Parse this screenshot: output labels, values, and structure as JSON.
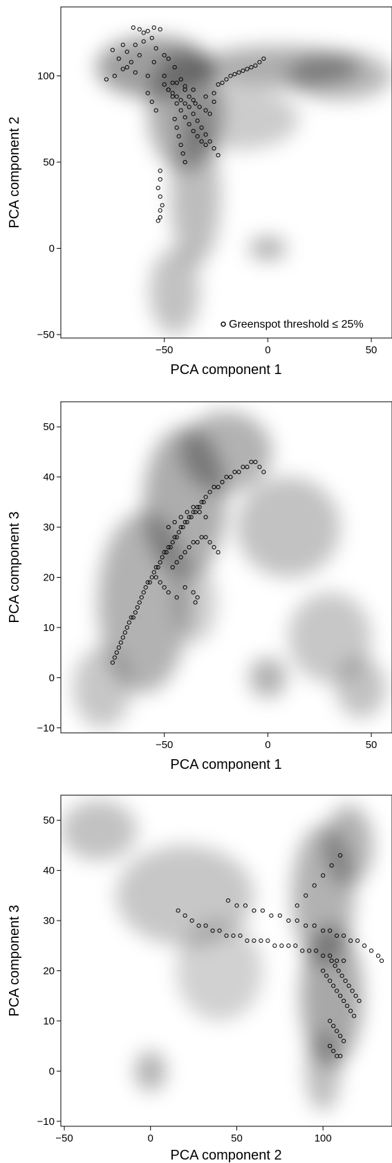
{
  "chart_data": [
    {
      "type": "scatter",
      "xlabel": "PCA component 1",
      "ylabel": "PCA component 2",
      "xlim": [
        -100,
        60
      ],
      "ylim": [
        -52,
        140
      ],
      "xticks": [
        -50,
        0,
        50
      ],
      "yticks": [
        -50,
        0,
        50,
        100
      ],
      "xtick_labels": [
        "−50",
        "0",
        "50"
      ],
      "ytick_labels": [
        "−50",
        "0",
        "50",
        "100"
      ],
      "grid": false,
      "legend": {
        "placement": "bottom-right",
        "entries": [
          "Greenspot threshold ≤ 25%"
        ]
      },
      "density_regions": [
        {
          "cx": -55,
          "cy": 105,
          "rx": 28,
          "ry": 18,
          "opacity": 0.38
        },
        {
          "cx": -40,
          "cy": 80,
          "rx": 18,
          "ry": 35,
          "opacity": 0.32
        },
        {
          "cx": -35,
          "cy": 30,
          "rx": 12,
          "ry": 40,
          "opacity": 0.26
        },
        {
          "cx": -45,
          "cy": -25,
          "rx": 12,
          "ry": 25,
          "opacity": 0.24
        },
        {
          "cx": 5,
          "cy": 105,
          "rx": 40,
          "ry": 12,
          "opacity": 0.32
        },
        {
          "cx": 35,
          "cy": 100,
          "rx": 25,
          "ry": 14,
          "opacity": 0.28
        },
        {
          "cx": -15,
          "cy": 75,
          "rx": 30,
          "ry": 18,
          "opacity": 0.2
        },
        {
          "cx": 0,
          "cy": 0,
          "rx": 9,
          "ry": 7,
          "opacity": 0.3
        }
      ],
      "series": [
        {
          "name": "Greenspot threshold ≤ 25%",
          "x": [
            -65,
            -62,
            -58,
            -55,
            -52,
            -60,
            -70,
            -75,
            -72,
            -68,
            -64,
            -58,
            -55,
            -50,
            -48,
            -45,
            -42,
            -40,
            -38,
            -36,
            -35,
            -33,
            -30,
            -28,
            -26,
            -24,
            -22,
            -20,
            -18,
            -16,
            -14,
            -12,
            -10,
            -8,
            -6,
            -4,
            -2,
            -48,
            -46,
            -44,
            -42,
            -40,
            -38,
            -36,
            -34,
            -32,
            -30,
            -45,
            -44,
            -43,
            -42,
            -41,
            -40,
            -52,
            -52,
            -53,
            -52,
            -51,
            -52,
            -52,
            -53,
            -50,
            -48,
            -46,
            -44,
            -42,
            -40,
            -38,
            -36,
            -34,
            -32,
            -30,
            -28,
            -26,
            -24,
            -62,
            -66,
            -70,
            -74,
            -78,
            -68,
            -64,
            -60,
            -56,
            -54,
            -50,
            -46,
            -58,
            -56,
            -54,
            -44,
            -40,
            -36,
            -30,
            -26
          ],
          "y": [
            128,
            127,
            126,
            128,
            127,
            125,
            118,
            115,
            110,
            105,
            102,
            100,
            108,
            112,
            110,
            105,
            98,
            92,
            88,
            86,
            84,
            82,
            80,
            78,
            90,
            95,
            96,
            98,
            100,
            101,
            102,
            103,
            104,
            105,
            106,
            108,
            110,
            92,
            88,
            84,
            80,
            76,
            72,
            68,
            65,
            62,
            60,
            75,
            70,
            65,
            60,
            55,
            50,
            45,
            40,
            35,
            30,
            25,
            22,
            18,
            16,
            95,
            92,
            90,
            88,
            86,
            84,
            82,
            78,
            74,
            70,
            66,
            62,
            58,
            54,
            112,
            108,
            104,
            100,
            98,
            114,
            118,
            120,
            122,
            116,
            100,
            96,
            90,
            85,
            80,
            96,
            94,
            92,
            88,
            85
          ]
        }
      ]
    },
    {
      "type": "scatter",
      "xlabel": "PCA component 1",
      "ylabel": "PCA component 3",
      "xlim": [
        -100,
        60
      ],
      "ylim": [
        -11,
        55
      ],
      "xticks": [
        -50,
        0,
        50
      ],
      "yticks": [
        -10,
        0,
        10,
        20,
        30,
        40,
        50
      ],
      "xtick_labels": [
        "−50",
        "0",
        "50"
      ],
      "ytick_labels": [
        "−10",
        "0",
        "10",
        "20",
        "30",
        "40",
        "50"
      ],
      "grid": false,
      "density_regions": [
        {
          "cx": -60,
          "cy": 15,
          "rx": 22,
          "ry": 18,
          "opacity": 0.3
        },
        {
          "cx": -80,
          "cy": -2,
          "rx": 14,
          "ry": 8,
          "opacity": 0.22
        },
        {
          "cx": -40,
          "cy": 35,
          "rx": 20,
          "ry": 15,
          "opacity": 0.32
        },
        {
          "cx": -20,
          "cy": 45,
          "rx": 22,
          "ry": 8,
          "opacity": 0.3
        },
        {
          "cx": 10,
          "cy": 30,
          "rx": 25,
          "ry": 10,
          "opacity": 0.24
        },
        {
          "cx": 30,
          "cy": 8,
          "rx": 20,
          "ry": 9,
          "opacity": 0.22
        },
        {
          "cx": 45,
          "cy": -2,
          "rx": 12,
          "ry": 6,
          "opacity": 0.24
        },
        {
          "cx": -35,
          "cy": 15,
          "rx": 10,
          "ry": 8,
          "opacity": 0.2
        },
        {
          "cx": 0,
          "cy": 0,
          "rx": 9,
          "ry": 4,
          "opacity": 0.3
        }
      ],
      "series": [
        {
          "name": "",
          "x": [
            -75,
            -74,
            -73,
            -72,
            -71,
            -70,
            -69,
            -68,
            -67,
            -66,
            -65,
            -64,
            -63,
            -62,
            -61,
            -60,
            -59,
            -58,
            -57,
            -56,
            -55,
            -54,
            -53,
            -52,
            -51,
            -50,
            -49,
            -48,
            -47,
            -46,
            -45,
            -44,
            -43,
            -42,
            -41,
            -40,
            -39,
            -38,
            -37,
            -36,
            -35,
            -34,
            -33,
            -32,
            -31,
            -30,
            -28,
            -26,
            -24,
            -22,
            -20,
            -18,
            -16,
            -14,
            -12,
            -10,
            -8,
            -6,
            -4,
            -2,
            -46,
            -44,
            -42,
            -40,
            -38,
            -36,
            -34,
            -32,
            -30,
            -28,
            -26,
            -24,
            -48,
            -45,
            -42,
            -39,
            -36,
            -33,
            -30,
            -54,
            -52,
            -50,
            -48,
            -44,
            -40,
            -36,
            -35,
            -34
          ],
          "y": [
            3,
            4,
            5,
            6,
            7,
            8,
            9,
            10,
            11,
            12,
            12,
            13,
            14,
            15,
            16,
            17,
            18,
            19,
            19,
            20,
            21,
            22,
            22,
            23,
            24,
            25,
            25,
            26,
            26,
            27,
            28,
            28,
            29,
            30,
            30,
            31,
            31,
            32,
            32,
            33,
            33,
            34,
            34,
            35,
            35,
            36,
            37,
            38,
            38,
            39,
            40,
            40,
            41,
            41,
            42,
            42,
            43,
            43,
            42,
            41,
            22,
            23,
            24,
            25,
            26,
            27,
            27,
            28,
            28,
            27,
            26,
            25,
            30,
            31,
            32,
            33,
            34,
            33,
            32,
            20,
            19,
            18,
            17,
            16,
            18,
            17,
            15,
            16
          ]
        }
      ]
    },
    {
      "type": "scatter",
      "xlabel": "PCA component 2",
      "ylabel": "PCA component 3",
      "xlim": [
        -52,
        140
      ],
      "ylim": [
        -11,
        55
      ],
      "xticks": [
        -50,
        0,
        50,
        100
      ],
      "yticks": [
        -10,
        0,
        10,
        20,
        30,
        40,
        50
      ],
      "xtick_labels": [
        "−50",
        "0",
        "50",
        "100"
      ],
      "ytick_labels": [
        "−10",
        "0",
        "10",
        "20",
        "30",
        "40",
        "50"
      ],
      "grid": false,
      "density_regions": [
        {
          "cx": -30,
          "cy": 48,
          "rx": 22,
          "ry": 6,
          "opacity": 0.24
        },
        {
          "cx": 20,
          "cy": 35,
          "rx": 40,
          "ry": 10,
          "opacity": 0.22
        },
        {
          "cx": 40,
          "cy": 20,
          "rx": 25,
          "ry": 10,
          "opacity": 0.18
        },
        {
          "cx": 100,
          "cy": 35,
          "rx": 18,
          "ry": 14,
          "opacity": 0.3
        },
        {
          "cx": 115,
          "cy": 45,
          "rx": 14,
          "ry": 8,
          "opacity": 0.3
        },
        {
          "cx": 105,
          "cy": 15,
          "rx": 18,
          "ry": 14,
          "opacity": 0.34
        },
        {
          "cx": 100,
          "cy": 0,
          "rx": 10,
          "ry": 8,
          "opacity": 0.26
        },
        {
          "cx": 0,
          "cy": 0,
          "rx": 9,
          "ry": 4,
          "opacity": 0.3
        }
      ],
      "series": [
        {
          "name": "",
          "x": [
            16,
            20,
            24,
            28,
            32,
            36,
            40,
            44,
            48,
            52,
            56,
            60,
            64,
            68,
            72,
            76,
            80,
            84,
            88,
            92,
            96,
            100,
            104,
            108,
            112,
            45,
            50,
            55,
            60,
            65,
            70,
            75,
            80,
            85,
            90,
            95,
            100,
            104,
            108,
            112,
            116,
            120,
            124,
            128,
            132,
            134,
            100,
            102,
            104,
            106,
            108,
            110,
            112,
            114,
            116,
            118,
            104,
            106,
            108,
            110,
            112,
            104,
            106,
            108,
            110,
            105,
            107,
            109,
            111,
            113,
            115,
            117,
            119,
            121,
            85,
            90,
            95,
            100,
            105,
            110
          ],
          "y": [
            32,
            31,
            30,
            29,
            29,
            28,
            28,
            27,
            27,
            27,
            26,
            26,
            26,
            26,
            25,
            25,
            25,
            25,
            24,
            24,
            24,
            23,
            23,
            22,
            22,
            34,
            33,
            33,
            32,
            32,
            31,
            31,
            30,
            30,
            29,
            29,
            28,
            28,
            27,
            27,
            26,
            26,
            25,
            24,
            23,
            22,
            20,
            19,
            18,
            17,
            16,
            15,
            14,
            13,
            12,
            11,
            10,
            9,
            8,
            7,
            6,
            5,
            4,
            3,
            3,
            22,
            21,
            20,
            19,
            18,
            17,
            16,
            15,
            14,
            33,
            35,
            37,
            39,
            41,
            43
          ]
        }
      ]
    }
  ]
}
